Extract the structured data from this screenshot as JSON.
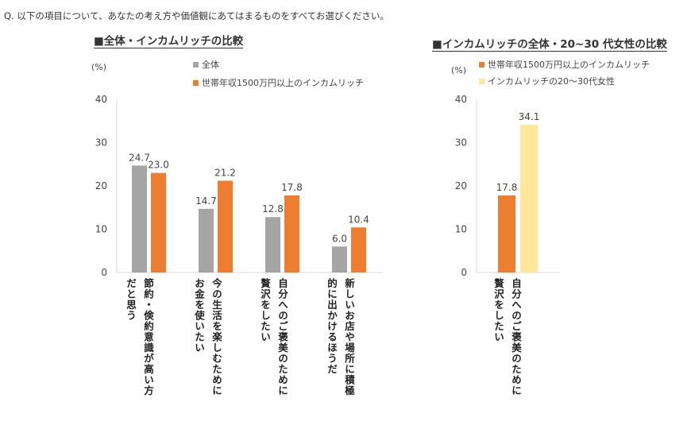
{
  "question": "Q. 以下の項目について、あなたの考え方や価値観にあてはまるものをすべてお選びください。",
  "chart_data": [
    {
      "type": "bar",
      "title": "■全体・インカムリッチの比較",
      "ylabel": "(%)",
      "ylim": [
        0,
        40
      ],
      "yticks": [
        0,
        10,
        20,
        30,
        40
      ],
      "grid": false,
      "legend_placement": "top",
      "categories": [
        [
          "節約・倹約意識が高い方",
          "だと思う"
        ],
        [
          "今の生活を楽しむために",
          "お金を使いたい"
        ],
        [
          "自分へのご褒美のために",
          "贅沢をしたい"
        ],
        [
          "新しいお店や場所に積極",
          "的に出かけるほうだ"
        ]
      ],
      "series": [
        {
          "name": "全体",
          "color": "#A5A5A5",
          "values": [
            24.7,
            14.7,
            12.8,
            6.0
          ]
        },
        {
          "name": "世帯年収1500万円以上のインカムリッチ",
          "color": "#ED7D31",
          "values": [
            23.0,
            21.2,
            17.8,
            10.4
          ]
        }
      ]
    },
    {
      "type": "bar",
      "title": "■インカムリッチの全体・20~30 代女性の比較",
      "ylabel": "(%)",
      "ylim": [
        0,
        40
      ],
      "yticks": [
        0,
        10,
        20,
        30,
        40
      ],
      "grid": false,
      "legend_placement": "top",
      "categories": [
        [
          "自分へのご褒美のために",
          "贅沢をしたい"
        ]
      ],
      "series": [
        {
          "name": "世帯年収1500万円以上のインカムリッチ",
          "color": "#ED7D31",
          "values": [
            17.8
          ]
        },
        {
          "name": "インカムリッチの20～30代女性",
          "color": "#FFE699",
          "values": [
            34.1
          ]
        }
      ]
    }
  ]
}
